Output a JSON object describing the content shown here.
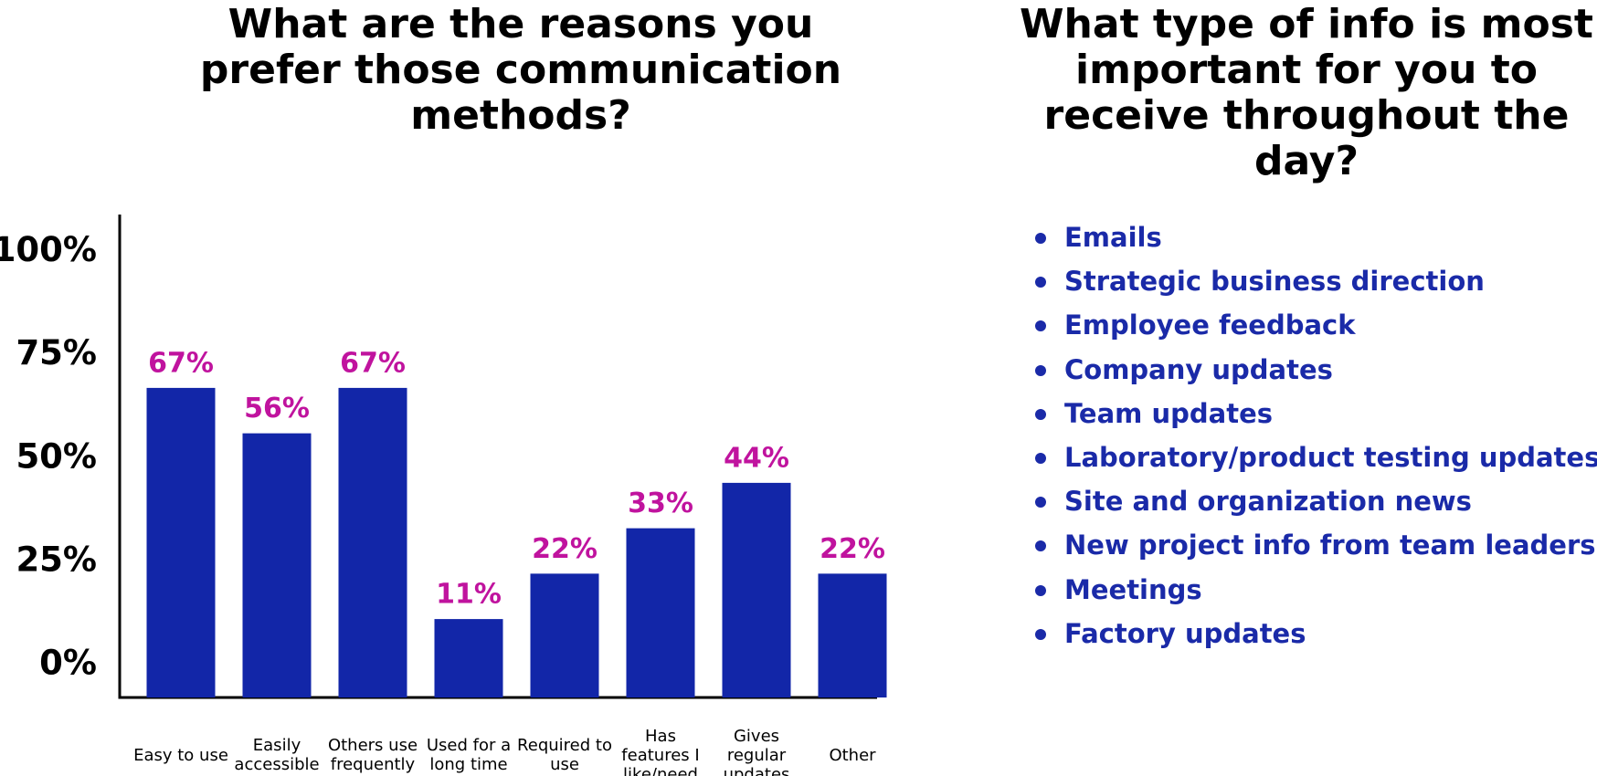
{
  "chart_data": {
    "type": "bar",
    "title": "What are the reasons you prefer those communication methods?",
    "categories": [
      "Easy to use",
      "Easily accessible",
      "Others use frequently",
      "Used for a long time",
      "Required to use",
      "Has features I like/need",
      "Gives regular updates",
      "Other"
    ],
    "values": [
      67,
      56,
      67,
      11,
      22,
      33,
      44,
      22
    ],
    "value_labels": [
      "67%",
      "56%",
      "67%",
      "11%",
      "22%",
      "33%",
      "44%",
      "22%"
    ],
    "color": "#1226a8",
    "label_color": "#c0139e",
    "ylim": [
      -8,
      109
    ],
    "yticks": [
      {
        "value": 0,
        "label": "0%"
      },
      {
        "value": 25,
        "label": "25%"
      },
      {
        "value": 50,
        "label": "50%"
      },
      {
        "value": 75,
        "label": "75%"
      },
      {
        "value": 100,
        "label": "100%"
      }
    ],
    "grid": false
  },
  "info_list": {
    "title": "What type of info is most important for you to receive throughout the day?",
    "items": [
      "Emails",
      "Strategic business direction",
      "Employee feedback",
      "Company updates",
      "Team updates",
      "Laboratory/product testing updates",
      "Site and organization news",
      "New project info from team leaders",
      "Meetings",
      "Factory updates"
    ]
  }
}
